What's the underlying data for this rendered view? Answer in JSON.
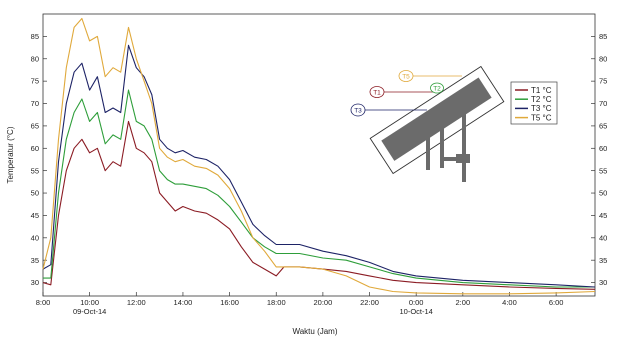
{
  "chart_data": {
    "type": "line",
    "xlabel": "Waktu (Jam)",
    "ylabel": "Temperatur (°C)",
    "x_unit": "time",
    "xlim": [
      "08:00",
      "07:40 (+1 day)"
    ],
    "ylim": [
      27,
      90
    ],
    "yticks": [
      30,
      35,
      40,
      45,
      50,
      55,
      60,
      65,
      70,
      75,
      80,
      85
    ],
    "xticks": [
      "8:00",
      "10:00",
      "12:00",
      "14:00",
      "16:00",
      "18:00",
      "20:00",
      "22:00",
      "0:00",
      "2:00",
      "4:00",
      "6:00"
    ],
    "date_labels": [
      {
        "text": "09-Oct-14",
        "at": "10:00"
      },
      {
        "text": "10-Oct-14",
        "at": "0:00"
      }
    ],
    "grid": false,
    "legend_position": "right",
    "series": [
      {
        "name": "T1 °C",
        "color": "#8b1c24",
        "points": [
          [
            "8:00",
            30
          ],
          [
            "8:20",
            29.5
          ],
          [
            "8:40",
            45
          ],
          [
            "9:00",
            55
          ],
          [
            "9:20",
            60
          ],
          [
            "9:40",
            62
          ],
          [
            "10:00",
            59
          ],
          [
            "10:20",
            60
          ],
          [
            "10:40",
            55
          ],
          [
            "11:00",
            57
          ],
          [
            "11:20",
            56
          ],
          [
            "11:40",
            66
          ],
          [
            "12:00",
            60
          ],
          [
            "12:20",
            59
          ],
          [
            "12:40",
            57
          ],
          [
            "13:00",
            50
          ],
          [
            "13:20",
            48
          ],
          [
            "13:40",
            46
          ],
          [
            "14:00",
            47
          ],
          [
            "14:30",
            46
          ],
          [
            "15:00",
            45.5
          ],
          [
            "15:30",
            44
          ],
          [
            "16:00",
            42
          ],
          [
            "16:30",
            38
          ],
          [
            "17:00",
            34.5
          ],
          [
            "17:30",
            33
          ],
          [
            "18:00",
            31.5
          ],
          [
            "18:20",
            33.5
          ],
          [
            "19:00",
            33.5
          ],
          [
            "20:00",
            33
          ],
          [
            "21:00",
            32.5
          ],
          [
            "22:00",
            31.5
          ],
          [
            "23:00",
            30.5
          ],
          [
            "0:00",
            30
          ],
          [
            "2:00",
            29.5
          ],
          [
            "4:00",
            29
          ],
          [
            "6:00",
            28.7
          ],
          [
            "7:40",
            28.5
          ]
        ]
      },
      {
        "name": "T2 °C",
        "color": "#2e9e3a",
        "points": [
          [
            "8:00",
            31
          ],
          [
            "8:20",
            31
          ],
          [
            "8:40",
            50
          ],
          [
            "9:00",
            62
          ],
          [
            "9:20",
            68
          ],
          [
            "9:40",
            71
          ],
          [
            "10:00",
            66
          ],
          [
            "10:20",
            68
          ],
          [
            "10:40",
            61
          ],
          [
            "11:00",
            63
          ],
          [
            "11:20",
            62
          ],
          [
            "11:40",
            73
          ],
          [
            "12:00",
            66
          ],
          [
            "12:20",
            65
          ],
          [
            "12:40",
            62
          ],
          [
            "13:00",
            55
          ],
          [
            "13:20",
            53
          ],
          [
            "13:40",
            52
          ],
          [
            "14:00",
            52
          ],
          [
            "14:30",
            51.5
          ],
          [
            "15:00",
            51
          ],
          [
            "15:30",
            49.5
          ],
          [
            "16:00",
            47
          ],
          [
            "16:30",
            43.5
          ],
          [
            "17:00",
            40
          ],
          [
            "17:30",
            38
          ],
          [
            "18:00",
            36.5
          ],
          [
            "19:00",
            36.5
          ],
          [
            "20:00",
            35.5
          ],
          [
            "21:00",
            35
          ],
          [
            "22:00",
            33.5
          ],
          [
            "23:00",
            32
          ],
          [
            "0:00",
            31
          ],
          [
            "2:00",
            30
          ],
          [
            "4:00",
            29.5
          ],
          [
            "6:00",
            29
          ],
          [
            "7:40",
            29
          ]
        ]
      },
      {
        "name": "T3 °C",
        "color": "#1d2366",
        "points": [
          [
            "8:00",
            33
          ],
          [
            "8:20",
            34
          ],
          [
            "8:40",
            57
          ],
          [
            "9:00",
            70
          ],
          [
            "9:20",
            77
          ],
          [
            "9:40",
            79
          ],
          [
            "10:00",
            73
          ],
          [
            "10:20",
            76
          ],
          [
            "10:40",
            68
          ],
          [
            "11:00",
            69
          ],
          [
            "11:20",
            68
          ],
          [
            "11:40",
            83
          ],
          [
            "12:00",
            78
          ],
          [
            "12:20",
            76
          ],
          [
            "12:40",
            72
          ],
          [
            "13:00",
            62
          ],
          [
            "13:20",
            60
          ],
          [
            "13:40",
            59
          ],
          [
            "14:00",
            59.5
          ],
          [
            "14:30",
            58
          ],
          [
            "15:00",
            57.5
          ],
          [
            "15:30",
            56
          ],
          [
            "16:00",
            53
          ],
          [
            "16:30",
            48
          ],
          [
            "17:00",
            43
          ],
          [
            "17:30",
            40.5
          ],
          [
            "18:00",
            38.5
          ],
          [
            "19:00",
            38.5
          ],
          [
            "20:00",
            37
          ],
          [
            "21:00",
            36
          ],
          [
            "22:00",
            34.5
          ],
          [
            "23:00",
            32.5
          ],
          [
            "0:00",
            31.5
          ],
          [
            "2:00",
            30.5
          ],
          [
            "4:00",
            30
          ],
          [
            "6:00",
            29.5
          ],
          [
            "7:40",
            29
          ]
        ]
      },
      {
        "name": "T5 °C",
        "color": "#e0a93b",
        "points": [
          [
            "8:00",
            33
          ],
          [
            "8:20",
            40
          ],
          [
            "8:40",
            62
          ],
          [
            "9:00",
            78
          ],
          [
            "9:20",
            87
          ],
          [
            "9:40",
            89
          ],
          [
            "10:00",
            84
          ],
          [
            "10:20",
            85
          ],
          [
            "10:40",
            76
          ],
          [
            "11:00",
            78
          ],
          [
            "11:20",
            77
          ],
          [
            "11:40",
            87
          ],
          [
            "12:00",
            80
          ],
          [
            "12:20",
            75
          ],
          [
            "12:40",
            70
          ],
          [
            "13:00",
            60
          ],
          [
            "13:20",
            58
          ],
          [
            "13:40",
            57
          ],
          [
            "14:00",
            57.5
          ],
          [
            "14:30",
            56
          ],
          [
            "15:00",
            55.5
          ],
          [
            "15:30",
            54
          ],
          [
            "16:00",
            51
          ],
          [
            "16:30",
            46
          ],
          [
            "17:00",
            40
          ],
          [
            "17:30",
            37
          ],
          [
            "18:00",
            33.5
          ],
          [
            "19:00",
            33.5
          ],
          [
            "20:00",
            33
          ],
          [
            "21:00",
            31.5
          ],
          [
            "22:00",
            29
          ],
          [
            "23:00",
            28
          ],
          [
            "0:00",
            27.7
          ],
          [
            "2:00",
            27.5
          ],
          [
            "4:00",
            27.5
          ],
          [
            "6:00",
            27.7
          ],
          [
            "7:40",
            28
          ]
        ]
      }
    ],
    "inset_diagram": {
      "labels": [
        "T5",
        "T2",
        "T1",
        "T3"
      ]
    }
  }
}
